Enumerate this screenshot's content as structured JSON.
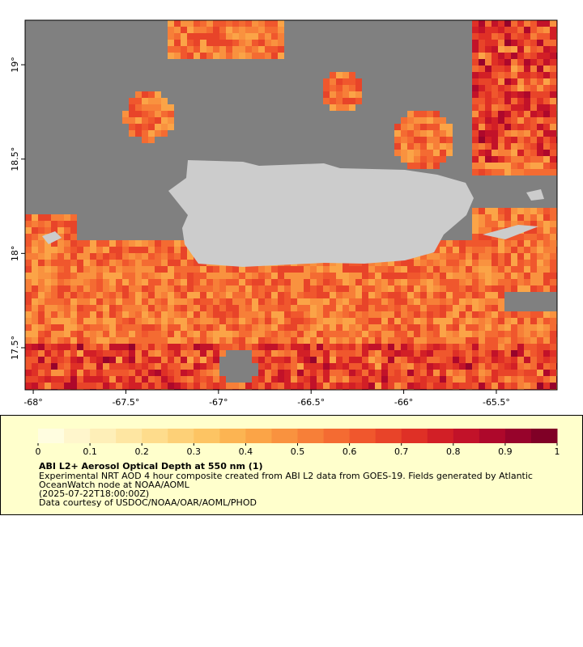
{
  "map": {
    "lon_range": [
      -68.044,
      -65.172
    ],
    "lat_range": [
      17.277,
      19.236
    ],
    "lon_ticks": [
      {
        "value": -68,
        "label": "-68°"
      },
      {
        "value": -67.5,
        "label": "-67.5°"
      },
      {
        "value": -67,
        "label": "-67°"
      },
      {
        "value": -66.5,
        "label": "-66.5°"
      },
      {
        "value": -66,
        "label": "-66°"
      },
      {
        "value": -65.5,
        "label": "-65.5°"
      }
    ],
    "lat_ticks": [
      {
        "value": 17.5,
        "label": "17.5°"
      },
      {
        "value": 18,
        "label": "18°"
      },
      {
        "value": 18.5,
        "label": "18.5°"
      },
      {
        "value": 19,
        "label": "19°"
      }
    ]
  },
  "colorbar": {
    "range": [
      0,
      1
    ],
    "ticks": [
      0,
      0.1,
      0.2,
      0.3,
      0.4,
      0.5,
      0.6,
      0.7,
      0.8,
      0.9,
      1
    ],
    "colors": [
      "#fffde0",
      "#fff6cc",
      "#feefb8",
      "#fee6a2",
      "#fedc8c",
      "#fdd077",
      "#fdc463",
      "#fcb452",
      "#fba447",
      "#f9923f",
      "#f77f38",
      "#f46b32",
      "#f0572d",
      "#e84429",
      "#df3026",
      "#d21f26",
      "#c21229",
      "#ae082b",
      "#97032b",
      "#800026"
    ]
  },
  "legend": {
    "title": "ABI L2+ Aerosol Optical Depth at 550 nm (1)",
    "lines": [
      "Experimental NRT AOD 4 hour composite created from ABI L2 data from GOES-19. Fields generated by Atlantic",
      "OceanWatch node at NOAA/AOML",
      "(2025-07-22T18:00:00Z)",
      "Data courtesy of USDOC/NOAA/OAR/AOML/PHOD"
    ]
  }
}
